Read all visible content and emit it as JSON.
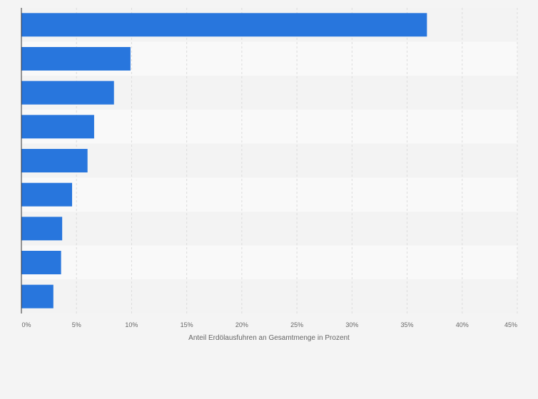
{
  "chart_data": {
    "type": "bar",
    "orientation": "horizontal",
    "categories": [
      "",
      "",
      "",
      "",
      "",
      "",
      "",
      "",
      ""
    ],
    "values": [
      36.8,
      9.9,
      8.4,
      6.6,
      6.0,
      4.6,
      3.7,
      3.6,
      2.9
    ],
    "xlim": [
      0,
      45
    ],
    "ticks": [
      0,
      5,
      10,
      15,
      20,
      25,
      30,
      35,
      40,
      45
    ],
    "tick_labels": [
      "0%",
      "5%",
      "10%",
      "15%",
      "20%",
      "25%",
      "30%",
      "35%",
      "40%",
      "45%"
    ],
    "xlabel": "Anteil Erdölausfuhren an Gesamtmenge in Prozent",
    "ylabel": "",
    "grid": true,
    "colors": {
      "bar": "#2876dd",
      "band_light": "#f9f9f9",
      "band_dark": "#f3f3f3",
      "grid": "#dcdcdc",
      "axis": "#333333",
      "text": "#666666"
    }
  }
}
